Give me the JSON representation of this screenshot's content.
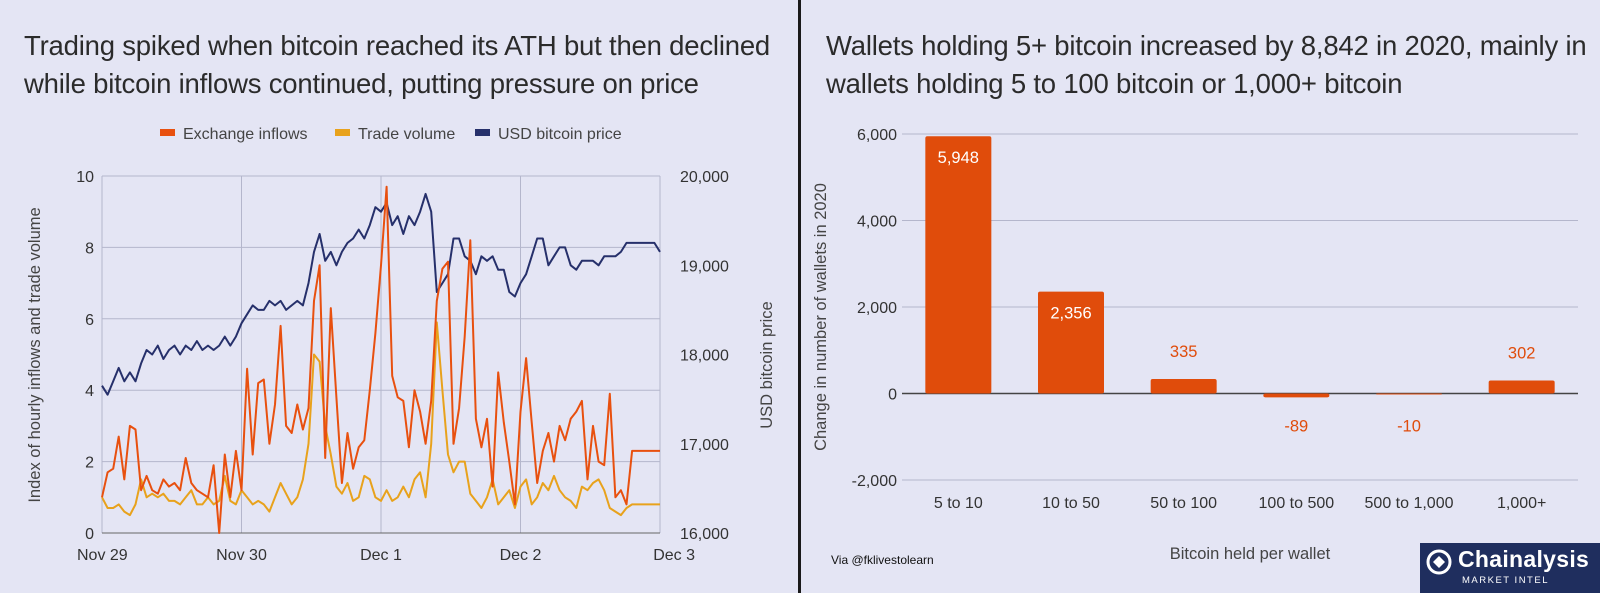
{
  "left_title": "Trading spiked when bitcoin reached its ATH but then declined while bitcoin inflows continued, putting pressure on price",
  "right_title": "Wallets holding 5+ bitcoin increased by 8,842 in 2020, mainly in wallets holding 5 to 100 bitcoin or 1,000+ bitcoin",
  "footer": {
    "via": "Via @fklivestolearn"
  },
  "logo": {
    "name": "Chainalysis",
    "sub": "MARKET INTEL"
  },
  "colors": {
    "inflows": "#e8500f",
    "volume": "#e8a21c",
    "price": "#26306b",
    "bar": "#e04c0b",
    "grid": "#b4b6cc",
    "background": "#e4e5f4"
  },
  "chart_data": [
    {
      "type": "line",
      "title": "Trading spiked when bitcoin reached its ATH but then declined while bitcoin inflows continued, putting pressure on price",
      "xlabel": "",
      "ylabel": "Index of hourly inflows and trade volume",
      "y2label": "USD bitcoin price",
      "ylim": [
        0,
        10
      ],
      "y2lim": [
        16000,
        20000
      ],
      "yticks": [
        "0",
        "2",
        "4",
        "6",
        "8",
        "10"
      ],
      "y2ticks": [
        "16,000",
        "17,000",
        "18,000",
        "19,000",
        "20,000"
      ],
      "xlim": [
        0,
        4
      ],
      "xticks": [
        {
          "x": 0,
          "label": "Nov 29"
        },
        {
          "x": 1,
          "label": "Nov 30"
        },
        {
          "x": 2,
          "label": "Dec 1"
        },
        {
          "x": 3,
          "label": "Dec 2"
        },
        {
          "x": 4,
          "label": "Dec 3"
        }
      ],
      "legend_position": "top",
      "series": [
        {
          "name": "Exchange inflows",
          "axis": "left",
          "x": [
            0.0,
            0.04,
            0.08,
            0.12,
            0.16,
            0.2,
            0.24,
            0.28,
            0.32,
            0.36,
            0.4,
            0.44,
            0.48,
            0.52,
            0.56,
            0.6,
            0.64,
            0.68,
            0.72,
            0.76,
            0.8,
            0.84,
            0.88,
            0.92,
            0.96,
            1.0,
            1.04,
            1.08,
            1.12,
            1.16,
            1.2,
            1.24,
            1.28,
            1.32,
            1.36,
            1.4,
            1.44,
            1.48,
            1.52,
            1.56,
            1.6,
            1.64,
            1.68,
            1.72,
            1.76,
            1.8,
            1.84,
            1.88,
            1.92,
            1.96,
            2.0,
            2.04,
            2.08,
            2.12,
            2.16,
            2.2,
            2.24,
            2.28,
            2.32,
            2.36,
            2.4,
            2.44,
            2.48,
            2.52,
            2.56,
            2.6,
            2.64,
            2.68,
            2.72,
            2.76,
            2.8,
            2.84,
            2.88,
            2.92,
            2.96,
            3.0,
            3.04,
            3.08,
            3.12,
            3.16,
            3.2,
            3.24,
            3.28,
            3.32,
            3.36,
            3.4,
            3.44,
            3.48,
            3.52,
            3.56,
            3.6,
            3.64,
            3.68,
            3.72,
            3.76,
            3.8,
            3.84,
            3.88,
            3.92,
            3.96,
            4.0
          ],
          "values": [
            1.0,
            1.7,
            1.8,
            2.7,
            1.5,
            3.0,
            2.9,
            1.2,
            1.6,
            1.2,
            1.1,
            1.5,
            1.3,
            1.4,
            1.2,
            2.1,
            1.4,
            1.2,
            1.1,
            1.0,
            1.9,
            0.0,
            2.2,
            1.0,
            2.3,
            1.2,
            4.6,
            2.2,
            4.2,
            4.3,
            2.5,
            3.6,
            5.8,
            3.0,
            2.8,
            3.6,
            2.9,
            3.5,
            6.5,
            7.5,
            2.1,
            6.3,
            3.8,
            1.4,
            2.8,
            1.8,
            2.4,
            2.6,
            4.0,
            5.6,
            7.5,
            9.7,
            4.4,
            3.8,
            3.7,
            2.4,
            4.0,
            3.4,
            2.5,
            3.7,
            6.5,
            7.4,
            7.6,
            2.5,
            3.5,
            5.5,
            8.2,
            3.2,
            2.4,
            3.2,
            1.3,
            4.5,
            3.1,
            2.0,
            0.8,
            3.4,
            4.9,
            3.1,
            1.4,
            2.3,
            2.8,
            2.0,
            3.0,
            2.6,
            3.2,
            3.4,
            3.7,
            1.5,
            3.0,
            2.0,
            1.9,
            3.9,
            1.0,
            1.2,
            0.8,
            2.3,
            2.3,
            2.3,
            2.3,
            2.3,
            2.3
          ]
        },
        {
          "name": "Trade volume",
          "axis": "left",
          "x": [
            0.0,
            0.04,
            0.08,
            0.12,
            0.16,
            0.2,
            0.24,
            0.28,
            0.32,
            0.36,
            0.4,
            0.44,
            0.48,
            0.52,
            0.56,
            0.6,
            0.64,
            0.68,
            0.72,
            0.76,
            0.8,
            0.84,
            0.88,
            0.92,
            0.96,
            1.0,
            1.04,
            1.08,
            1.12,
            1.16,
            1.2,
            1.24,
            1.28,
            1.32,
            1.36,
            1.4,
            1.44,
            1.48,
            1.52,
            1.56,
            1.6,
            1.64,
            1.68,
            1.72,
            1.76,
            1.8,
            1.84,
            1.88,
            1.92,
            1.96,
            2.0,
            2.04,
            2.08,
            2.12,
            2.16,
            2.2,
            2.24,
            2.28,
            2.32,
            2.36,
            2.4,
            2.44,
            2.48,
            2.52,
            2.56,
            2.6,
            2.64,
            2.68,
            2.72,
            2.76,
            2.8,
            2.84,
            2.88,
            2.92,
            2.96,
            3.0,
            3.04,
            3.08,
            3.12,
            3.16,
            3.2,
            3.24,
            3.28,
            3.32,
            3.36,
            3.4,
            3.44,
            3.48,
            3.52,
            3.56,
            3.6,
            3.64,
            3.68,
            3.72,
            3.76,
            3.8,
            3.84,
            3.88,
            3.92,
            3.96,
            4.0
          ],
          "values": [
            1.0,
            0.7,
            0.7,
            0.8,
            0.6,
            0.5,
            0.8,
            1.5,
            1.0,
            1.1,
            1.0,
            1.1,
            0.9,
            0.9,
            0.8,
            1.0,
            1.2,
            0.8,
            0.8,
            1.0,
            0.8,
            0.9,
            1.6,
            0.9,
            0.8,
            1.2,
            1.0,
            0.8,
            0.9,
            0.8,
            0.6,
            1.0,
            1.4,
            1.1,
            0.8,
            1.0,
            1.5,
            2.5,
            5.0,
            4.8,
            3.0,
            2.2,
            1.3,
            1.1,
            1.4,
            0.9,
            1.0,
            1.6,
            1.5,
            1.0,
            0.9,
            1.2,
            0.9,
            1.0,
            1.3,
            1.0,
            1.5,
            1.7,
            1.0,
            2.5,
            5.9,
            4.0,
            2.2,
            1.7,
            2.0,
            2.0,
            1.1,
            0.9,
            0.7,
            1.0,
            1.5,
            0.8,
            1.0,
            1.2,
            0.7,
            1.3,
            1.5,
            0.8,
            1.0,
            1.4,
            1.2,
            1.6,
            1.2,
            1.0,
            0.9,
            0.7,
            1.3,
            1.2,
            1.4,
            1.5,
            1.2,
            0.7,
            0.6,
            0.5,
            0.7,
            0.8,
            0.8,
            0.8,
            0.8,
            0.8,
            0.8
          ]
        },
        {
          "name": "USD bitcoin price",
          "axis": "right",
          "x": [
            0.0,
            0.04,
            0.08,
            0.12,
            0.16,
            0.2,
            0.24,
            0.28,
            0.32,
            0.36,
            0.4,
            0.44,
            0.48,
            0.52,
            0.56,
            0.6,
            0.64,
            0.68,
            0.72,
            0.76,
            0.8,
            0.84,
            0.88,
            0.92,
            0.96,
            1.0,
            1.04,
            1.08,
            1.12,
            1.16,
            1.2,
            1.24,
            1.28,
            1.32,
            1.36,
            1.4,
            1.44,
            1.48,
            1.52,
            1.56,
            1.6,
            1.64,
            1.68,
            1.72,
            1.76,
            1.8,
            1.84,
            1.88,
            1.92,
            1.96,
            2.0,
            2.04,
            2.08,
            2.12,
            2.16,
            2.2,
            2.24,
            2.28,
            2.32,
            2.36,
            2.4,
            2.44,
            2.48,
            2.52,
            2.56,
            2.6,
            2.64,
            2.68,
            2.72,
            2.76,
            2.8,
            2.84,
            2.88,
            2.92,
            2.96,
            3.0,
            3.04,
            3.08,
            3.12,
            3.16,
            3.2,
            3.24,
            3.28,
            3.32,
            3.36,
            3.4,
            3.44,
            3.48,
            3.52,
            3.56,
            3.6,
            3.64,
            3.68,
            3.72,
            3.76,
            3.8,
            3.84,
            3.88,
            3.92,
            3.96,
            4.0
          ],
          "values": [
            17650,
            17550,
            17700,
            17850,
            17700,
            17800,
            17700,
            17900,
            18050,
            18000,
            18100,
            17950,
            18050,
            18100,
            18000,
            18100,
            18050,
            18150,
            18050,
            18100,
            18050,
            18100,
            18200,
            18100,
            18200,
            18350,
            18450,
            18550,
            18500,
            18500,
            18600,
            18550,
            18600,
            18500,
            18550,
            18600,
            18550,
            18800,
            19150,
            19350,
            19050,
            19150,
            19000,
            19150,
            19250,
            19300,
            19400,
            19300,
            19450,
            19650,
            19600,
            19700,
            19450,
            19550,
            19350,
            19550,
            19450,
            19600,
            19800,
            19600,
            18700,
            18800,
            18900,
            19300,
            19300,
            19100,
            19050,
            18900,
            19100,
            19050,
            19100,
            18950,
            18950,
            18700,
            18650,
            18800,
            18900,
            19100,
            19300,
            19300,
            19000,
            19100,
            19200,
            19200,
            19000,
            18950,
            19050,
            19050,
            19050,
            19000,
            19100,
            19100,
            19100,
            19150,
            19250,
            19250,
            19250,
            19250,
            19250,
            19250,
            19150
          ]
        }
      ]
    },
    {
      "type": "bar",
      "title": "Wallets holding 5+ bitcoin increased by 8,842 in 2020, mainly in wallets holding 5 to 100 bitcoin or 1,000+ bitcoin",
      "xlabel": "Bitcoin held per wallet",
      "ylabel": "Change in number of wallets in 2020",
      "ylim": [
        -2000,
        6000
      ],
      "yticks": [
        "-2,000",
        "0",
        "2,000",
        "4,000",
        "6,000"
      ],
      "categories": [
        "5 to 10",
        "10 to 50",
        "50 to 100",
        "100 to 500",
        "500 to 1,000",
        "1,000+"
      ],
      "values": [
        5948,
        2356,
        335,
        -89,
        -10,
        302
      ],
      "data_labels": [
        "5,948",
        "2,356",
        "335",
        "-89",
        "-10",
        "302"
      ]
    }
  ]
}
